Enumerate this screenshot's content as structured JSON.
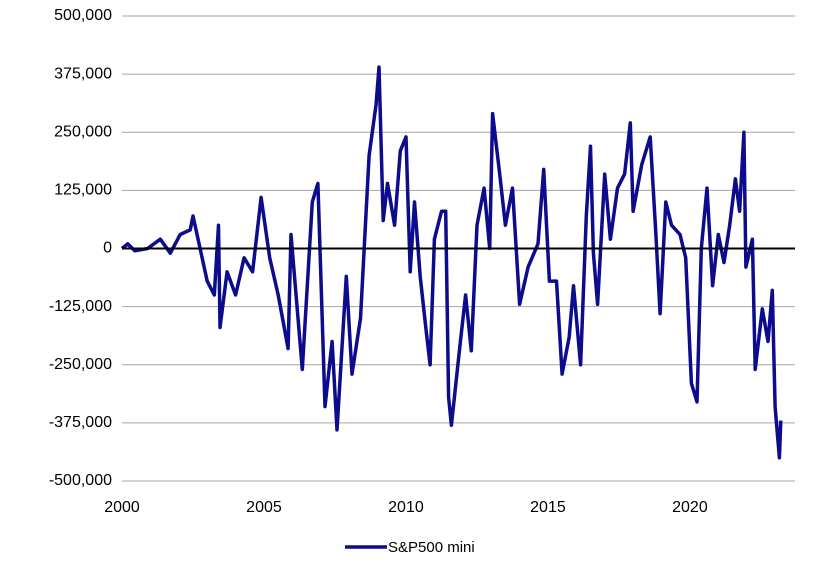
{
  "chart_data": {
    "type": "line",
    "x": [
      2000.0,
      2000.2,
      2000.45,
      2000.9,
      2001.35,
      2001.7,
      2002.05,
      2002.4,
      2002.5,
      2002.75,
      2003.0,
      2003.25,
      2003.4,
      2003.45,
      2003.7,
      2004.0,
      2004.3,
      2004.6,
      2004.9,
      2005.2,
      2005.5,
      2005.85,
      2005.95,
      2006.35,
      2006.7,
      2006.9,
      2007.15,
      2007.4,
      2007.57,
      2007.9,
      2008.1,
      2008.4,
      2008.7,
      2008.95,
      2009.05,
      2009.2,
      2009.35,
      2009.6,
      2009.8,
      2010.0,
      2010.15,
      2010.3,
      2010.5,
      2010.7,
      2010.85,
      2011.0,
      2011.25,
      2011.4,
      2011.5,
      2011.6,
      2011.9,
      2012.1,
      2012.3,
      2012.5,
      2012.75,
      2012.95,
      2013.05,
      2013.3,
      2013.5,
      2013.75,
      2014.0,
      2014.3,
      2014.65,
      2014.85,
      2015.05,
      2015.3,
      2015.5,
      2015.75,
      2015.9,
      2016.15,
      2016.35,
      2016.5,
      2016.6,
      2016.75,
      2017.0,
      2017.2,
      2017.45,
      2017.7,
      2017.9,
      2018.0,
      2018.3,
      2018.6,
      2018.8,
      2018.95,
      2019.15,
      2019.35,
      2019.65,
      2019.85,
      2020.05,
      2020.25,
      2020.4,
      2020.6,
      2020.8,
      2021.0,
      2021.2,
      2021.4,
      2021.6,
      2021.75,
      2021.9,
      2021.97,
      2022.2,
      2022.3,
      2022.55,
      2022.75,
      2022.9,
      2023.0,
      2023.15,
      2023.2
    ],
    "series": [
      {
        "name": "S&P500 mini",
        "color": "#0c0c8c",
        "values": [
          0,
          10000,
          -5000,
          0,
          20000,
          -10000,
          30000,
          40000,
          70000,
          0,
          -70000,
          -100000,
          50000,
          -170000,
          -50000,
          -100000,
          -20000,
          -50000,
          110000,
          -20000,
          -100000,
          -215000,
          30000,
          -260000,
          100000,
          140000,
          -340000,
          -200000,
          -390000,
          -60000,
          -270000,
          -150000,
          200000,
          310000,
          390000,
          60000,
          140000,
          50000,
          210000,
          240000,
          -50000,
          100000,
          -60000,
          -170000,
          -250000,
          20000,
          80000,
          80000,
          -320000,
          -380000,
          -210000,
          -100000,
          -220000,
          50000,
          130000,
          0,
          290000,
          160000,
          50000,
          130000,
          -120000,
          -40000,
          10000,
          170000,
          -70000,
          -70000,
          -270000,
          -190000,
          -80000,
          -250000,
          70000,
          220000,
          -10000,
          -120000,
          160000,
          20000,
          130000,
          160000,
          270000,
          80000,
          180000,
          240000,
          30000,
          -140000,
          100000,
          50000,
          30000,
          -20000,
          -290000,
          -330000,
          0,
          130000,
          -80000,
          30000,
          -30000,
          50000,
          150000,
          80000,
          250000,
          -40000,
          20000,
          -260000,
          -130000,
          -200000,
          -90000,
          -340000,
          -450000,
          -370000
        ]
      }
    ],
    "xlim": [
      2000,
      2023.7
    ],
    "xticks": [
      2000,
      2005,
      2010,
      2015,
      2020
    ],
    "ylim": [
      -500000,
      500000
    ],
    "yticks": [
      {
        "value": -500000,
        "label": "-500,000"
      },
      {
        "value": -375000,
        "label": "-375,000"
      },
      {
        "value": -250000,
        "label": "-250,000"
      },
      {
        "value": -125000,
        "label": "-125,000"
      },
      0,
      {
        "value": 125000,
        "label": "125,000"
      },
      {
        "value": 250000,
        "label": "250,000"
      },
      {
        "value": 375000,
        "label": "375,000"
      },
      {
        "value": 500000,
        "label": "500,000"
      }
    ],
    "grid": true,
    "legend": "bottom"
  }
}
